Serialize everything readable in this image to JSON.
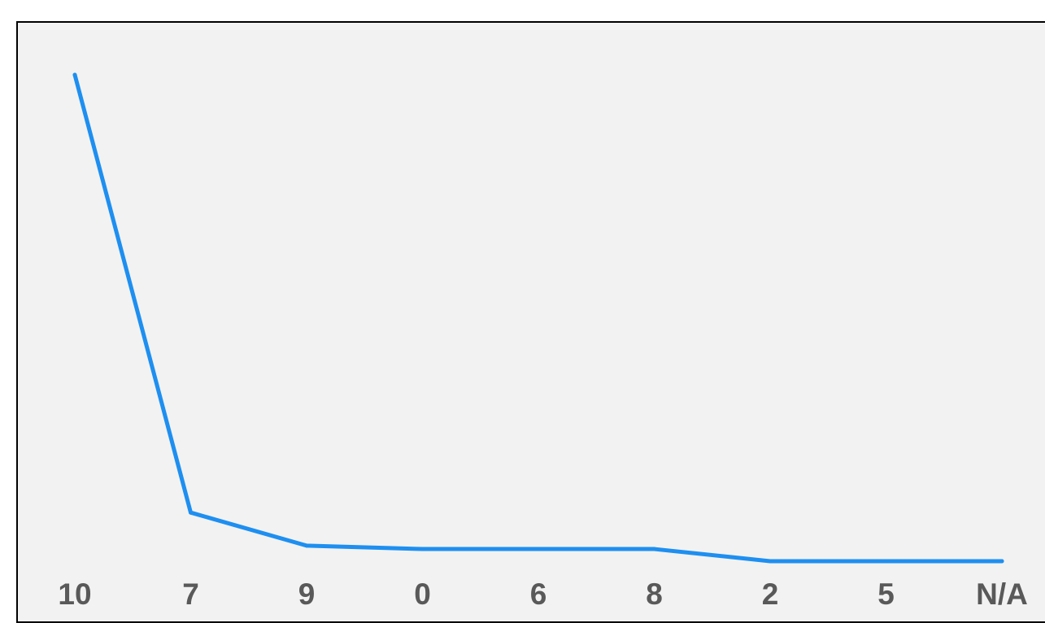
{
  "chart_data": {
    "type": "line",
    "categories": [
      "10",
      "7",
      "9",
      "0",
      "6",
      "8",
      "2",
      "5",
      "N/A"
    ],
    "series": [
      {
        "values": [
          1000,
          100,
          32,
          25,
          25,
          25,
          0,
          0,
          0
        ],
        "color": "#1e8ff0"
      }
    ],
    "ylim": [
      0,
      1000
    ],
    "grid": false,
    "legend": "none"
  }
}
